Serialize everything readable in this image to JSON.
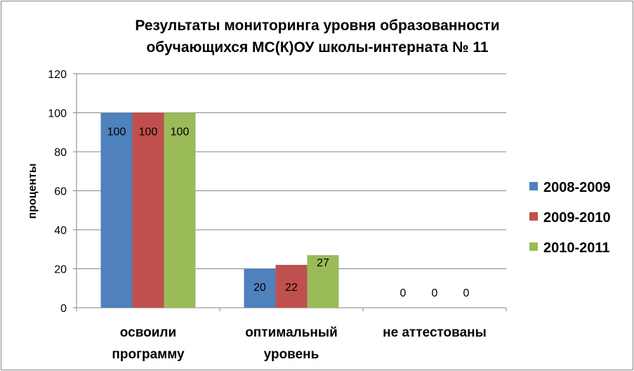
{
  "chart_data": {
    "type": "bar",
    "title_lines": [
      "Результаты мониторинга уровня образованности",
      "обучающихся  МС(К)ОУ школы-интерната № 11"
    ],
    "xlabel": "",
    "ylabel": "проценты",
    "ylim": [
      0,
      120
    ],
    "yticks": [
      0,
      20,
      40,
      60,
      80,
      100,
      120
    ],
    "grid": true,
    "legend_position": "right",
    "categories": [
      [
        "освоили",
        "программу"
      ],
      [
        "оптимальный",
        "уровень"
      ],
      [
        "не аттестованы"
      ]
    ],
    "series": [
      {
        "name": "2008-2009",
        "color": "#4F81BD",
        "values": [
          100,
          20,
          0
        ]
      },
      {
        "name": "2009-2010",
        "color": "#C0504D",
        "values": [
          100,
          22,
          0
        ]
      },
      {
        "name": "2010-2011",
        "color": "#9BBB59",
        "values": [
          100,
          27,
          0
        ]
      }
    ],
    "data_labels": true
  }
}
